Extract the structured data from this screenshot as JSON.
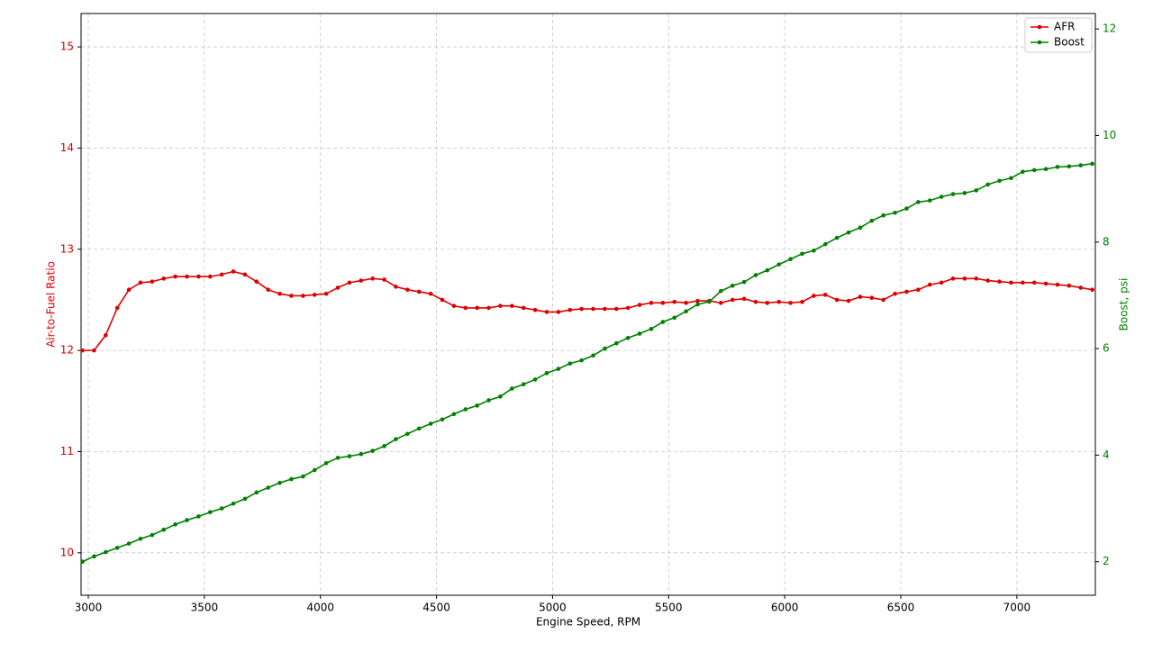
{
  "chart_data": {
    "type": "line",
    "x_label": "Engine Speed, RPM",
    "y_label": "Air-to-Fuel Ratio",
    "y2_label": "Boost, psi",
    "x": [
      2975,
      3025,
      3075,
      3125,
      3175,
      3225,
      3275,
      3325,
      3375,
      3425,
      3475,
      3525,
      3575,
      3625,
      3675,
      3725,
      3775,
      3825,
      3875,
      3925,
      3975,
      4025,
      4075,
      4125,
      4175,
      4225,
      4275,
      4325,
      4375,
      4425,
      4475,
      4525,
      4575,
      4625,
      4675,
      4725,
      4775,
      4825,
      4875,
      4925,
      4975,
      5025,
      5075,
      5125,
      5175,
      5225,
      5275,
      5325,
      5375,
      5425,
      5475,
      5525,
      5575,
      5625,
      5675,
      5725,
      5775,
      5825,
      5875,
      5925,
      5975,
      6025,
      6075,
      6125,
      6175,
      6225,
      6275,
      6325,
      6375,
      6425,
      6475,
      6525,
      6575,
      6625,
      6675,
      6725,
      6775,
      6825,
      6875,
      6925,
      6975,
      7025,
      7075,
      7125,
      7175,
      7225,
      7275,
      7325
    ],
    "series": [
      {
        "name": "AFR",
        "color": "#dd0000",
        "values": [
          12.0,
          12.0,
          12.15,
          12.42,
          12.6,
          12.67,
          12.68,
          12.71,
          12.73,
          12.73,
          12.73,
          12.73,
          12.75,
          12.78,
          12.75,
          12.68,
          12.6,
          12.56,
          12.54,
          12.54,
          12.55,
          12.56,
          12.62,
          12.67,
          12.69,
          12.71,
          12.7,
          12.63,
          12.6,
          12.58,
          12.56,
          12.5,
          12.44,
          12.42,
          12.42,
          12.42,
          12.44,
          12.44,
          12.42,
          12.4,
          12.38,
          12.38,
          12.4,
          12.41,
          12.41,
          12.41,
          12.41,
          12.42,
          12.45,
          12.47,
          12.47,
          12.48,
          12.47,
          12.49,
          12.49,
          12.47,
          12.5,
          12.51,
          12.48,
          12.47,
          12.48,
          12.47,
          12.48,
          12.54,
          12.55,
          12.5,
          12.49,
          12.53,
          12.52,
          12.5,
          12.56,
          12.58,
          12.6,
          12.65,
          12.67,
          12.71,
          12.71,
          12.71,
          12.69,
          12.68,
          12.67,
          12.67,
          12.67,
          12.66,
          12.65,
          12.64,
          12.62,
          12.6
        ]
      },
      {
        "name": "Boost",
        "color": "#008000",
        "axis": "y2",
        "values": [
          2.0,
          2.1,
          2.18,
          2.26,
          2.34,
          2.43,
          2.5,
          2.6,
          2.7,
          2.78,
          2.85,
          2.93,
          3.0,
          3.09,
          3.18,
          3.3,
          3.39,
          3.48,
          3.55,
          3.6,
          3.72,
          3.85,
          3.95,
          3.98,
          4.02,
          4.08,
          4.17,
          4.3,
          4.4,
          4.5,
          4.59,
          4.67,
          4.77,
          4.86,
          4.93,
          5.03,
          5.1,
          5.25,
          5.33,
          5.42,
          5.54,
          5.62,
          5.72,
          5.78,
          5.87,
          6.0,
          6.1,
          6.2,
          6.28,
          6.37,
          6.5,
          6.58,
          6.7,
          6.83,
          6.88,
          7.08,
          7.18,
          7.25,
          7.38,
          7.47,
          7.58,
          7.68,
          7.78,
          7.84,
          7.96,
          8.08,
          8.18,
          8.27,
          8.4,
          8.5,
          8.55,
          8.63,
          8.75,
          8.78,
          8.85,
          8.9,
          8.92,
          8.97,
          9.08,
          9.15,
          9.2,
          9.32,
          9.35,
          9.37,
          9.41,
          9.42,
          9.44,
          9.47
        ]
      }
    ],
    "xlim": [
      2969,
      7338
    ],
    "xticks": [
      3000,
      3500,
      4000,
      4500,
      5000,
      5500,
      6000,
      6500,
      7000
    ],
    "ylim": [
      9.58,
      15.33
    ],
    "yticks": [
      10,
      11,
      12,
      13,
      14,
      15
    ],
    "y2lim": [
      1.37,
      12.29
    ],
    "y2ticks": [
      2,
      4,
      6,
      8,
      10,
      12
    ],
    "grid": true,
    "legend": "upper right"
  }
}
